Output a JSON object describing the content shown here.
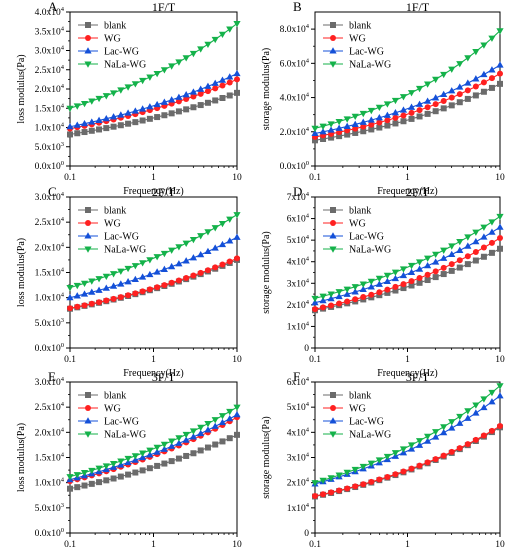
{
  "chart_data": [
    {
      "type": "line",
      "panel_label": "A",
      "title": "1F/T",
      "xlabel": "Frequency(Hz)",
      "ylabel": "loss modulus(Pa)",
      "xscale": "log",
      "xlim": [
        0.1,
        10
      ],
      "ylim": [
        0,
        40000
      ],
      "xticks": [
        0.1,
        1,
        10
      ],
      "xtick_labels": [
        "0.1",
        "1",
        "10"
      ],
      "yticks": [
        0,
        5000,
        10000,
        15000,
        20000,
        25000,
        30000,
        35000,
        40000
      ],
      "ytick_labels": [
        {
          "m": "0.0",
          "e": "0"
        },
        {
          "m": "5.0",
          "e": "3"
        },
        {
          "m": "1.0",
          "e": "4"
        },
        {
          "m": "1.5",
          "e": "4"
        },
        {
          "m": "2.0",
          "e": "4"
        },
        {
          "m": "2.5",
          "e": "4"
        },
        {
          "m": "3.0",
          "e": "4"
        },
        {
          "m": "3.5",
          "e": "4"
        },
        {
          "m": "4.0",
          "e": "4"
        }
      ],
      "legend_position": "top-left",
      "series": [
        {
          "name": "blank",
          "color": "#6b6b6b",
          "marker": "square",
          "y_start": 8200,
          "y_end": 19000
        },
        {
          "name": "WG",
          "color": "#ff2020",
          "marker": "circle",
          "y_start": 9700,
          "y_end": 22500
        },
        {
          "name": "Lac-WG",
          "color": "#1450d8",
          "marker": "triangle-up",
          "y_start": 10200,
          "y_end": 24000
        },
        {
          "name": "NaLa-WG",
          "color": "#14b24a",
          "marker": "triangle-down",
          "y_start": 15000,
          "y_end": 37000
        }
      ]
    },
    {
      "type": "line",
      "panel_label": "B",
      "title": "1F/T",
      "xlabel": "Frequency(Hz)",
      "ylabel": "storage modulus(Pa)",
      "xscale": "log",
      "xlim": [
        0.1,
        10
      ],
      "ylim": [
        0,
        90000
      ],
      "xticks": [
        0.1,
        1,
        10
      ],
      "xtick_labels": [
        "0.1",
        "1",
        "10"
      ],
      "yticks": [
        0,
        20000,
        40000,
        60000,
        80000
      ],
      "ytick_labels": [
        {
          "m": "0.0",
          "e": "0"
        },
        {
          "m": "2.0",
          "e": "4"
        },
        {
          "m": "4.0",
          "e": "4"
        },
        {
          "m": "6.0",
          "e": "4"
        },
        {
          "m": "8.0",
          "e": "4"
        }
      ],
      "legend_position": "top-left",
      "series": [
        {
          "name": "blank",
          "color": "#6b6b6b",
          "marker": "square",
          "y_start": 15000,
          "y_end": 48000
        },
        {
          "name": "WG",
          "color": "#ff2020",
          "marker": "circle",
          "y_start": 17000,
          "y_end": 54000
        },
        {
          "name": "Lac-WG",
          "color": "#1450d8",
          "marker": "triangle-up",
          "y_start": 19000,
          "y_end": 59000
        },
        {
          "name": "NaLa-WG",
          "color": "#14b24a",
          "marker": "triangle-down",
          "y_start": 22000,
          "y_end": 79000
        }
      ]
    },
    {
      "type": "line",
      "panel_label": "C",
      "title": "2F/T",
      "xlabel": "Frequency(Hz)",
      "ylabel": "loss modulus(Pa)",
      "xscale": "log",
      "xlim": [
        0.1,
        10
      ],
      "ylim": [
        0,
        30000
      ],
      "xticks": [
        0.1,
        1,
        10
      ],
      "xtick_labels": [
        "0.1",
        "1",
        "10"
      ],
      "yticks": [
        0,
        5000,
        10000,
        15000,
        20000,
        25000,
        30000
      ],
      "ytick_labels": [
        {
          "m": "0.0",
          "e": "0"
        },
        {
          "m": "5.0",
          "e": "3"
        },
        {
          "m": "1.0",
          "e": "4"
        },
        {
          "m": "1.5",
          "e": "4"
        },
        {
          "m": "2.0",
          "e": "4"
        },
        {
          "m": "2.5",
          "e": "4"
        },
        {
          "m": "3.0",
          "e": "4"
        }
      ],
      "legend_position": "top-left",
      "series": [
        {
          "name": "blank",
          "color": "#6b6b6b",
          "marker": "square",
          "y_start": 7800,
          "y_end": 17500
        },
        {
          "name": "WG",
          "color": "#ff2020",
          "marker": "circle",
          "y_start": 7900,
          "y_end": 17800
        },
        {
          "name": "Lac-WG",
          "color": "#1450d8",
          "marker": "triangle-up",
          "y_start": 10000,
          "y_end": 22000
        },
        {
          "name": "NaLa-WG",
          "color": "#14b24a",
          "marker": "triangle-down",
          "y_start": 12000,
          "y_end": 26500
        }
      ]
    },
    {
      "type": "line",
      "panel_label": "D",
      "title": "2F/T",
      "xlabel": "Frequency(Hz)",
      "ylabel": "storage modulus(Pa)",
      "xscale": "log",
      "xlim": [
        0.1,
        10
      ],
      "ylim": [
        0,
        70000
      ],
      "xticks": [
        0.1,
        1,
        10
      ],
      "xtick_labels": [
        "0.1",
        "1",
        "10"
      ],
      "yticks": [
        0,
        10000,
        20000,
        30000,
        40000,
        50000,
        60000,
        70000
      ],
      "ytick_labels": [
        {
          "m": "0",
          "e": ""
        },
        {
          "m": "1",
          "e": "4"
        },
        {
          "m": "2",
          "e": "4"
        },
        {
          "m": "3",
          "e": "4"
        },
        {
          "m": "4",
          "e": "4"
        },
        {
          "m": "5",
          "e": "4"
        },
        {
          "m": "6",
          "e": "4"
        },
        {
          "m": "7",
          "e": "4"
        }
      ],
      "legend_position": "top-left",
      "series": [
        {
          "name": "blank",
          "color": "#6b6b6b",
          "marker": "square",
          "y_start": 17500,
          "y_end": 46000
        },
        {
          "name": "WG",
          "color": "#ff2020",
          "marker": "circle",
          "y_start": 18000,
          "y_end": 51000
        },
        {
          "name": "Lac-WG",
          "color": "#1450d8",
          "marker": "triangle-up",
          "y_start": 21000,
          "y_end": 56000
        },
        {
          "name": "NaLa-WG",
          "color": "#14b24a",
          "marker": "triangle-down",
          "y_start": 23000,
          "y_end": 61000
        }
      ]
    },
    {
      "type": "line",
      "panel_label": "E",
      "title": "3F/T",
      "xlabel": "Frequency(Hz)",
      "ylabel": "loss modulus(Pa)",
      "xscale": "log",
      "xlim": [
        0.1,
        10
      ],
      "ylim": [
        0,
        30000
      ],
      "xticks": [
        0.1,
        1,
        10
      ],
      "xtick_labels": [
        "0.1",
        "1",
        "10"
      ],
      "yticks": [
        0,
        5000,
        10000,
        15000,
        20000,
        25000,
        30000
      ],
      "ytick_labels": [
        {
          "m": "0.0",
          "e": "0"
        },
        {
          "m": "5.0",
          "e": "3"
        },
        {
          "m": "1.0",
          "e": "4"
        },
        {
          "m": "1.5",
          "e": "4"
        },
        {
          "m": "2.0",
          "e": "4"
        },
        {
          "m": "2.5",
          "e": "4"
        },
        {
          "m": "3.0",
          "e": "4"
        }
      ],
      "legend_position": "top-left",
      "series": [
        {
          "name": "blank",
          "color": "#6b6b6b",
          "marker": "square",
          "y_start": 8800,
          "y_end": 19500
        },
        {
          "name": "WG",
          "color": "#ff2020",
          "marker": "circle",
          "y_start": 10300,
          "y_end": 23000
        },
        {
          "name": "Lac-WG",
          "color": "#1450d8",
          "marker": "triangle-up",
          "y_start": 10600,
          "y_end": 23500
        },
        {
          "name": "NaLa-WG",
          "color": "#14b24a",
          "marker": "triangle-down",
          "y_start": 11200,
          "y_end": 25000
        }
      ]
    },
    {
      "type": "line",
      "panel_label": "F",
      "title": "3F/T",
      "xlabel": "Frequency(Hz)",
      "ylabel": "storage modulus(Pa)",
      "xscale": "log",
      "xlim": [
        0.1,
        10
      ],
      "ylim": [
        0,
        60000
      ],
      "xticks": [
        0.1,
        1,
        10
      ],
      "xtick_labels": [
        "0.1",
        "1",
        "10"
      ],
      "yticks": [
        0,
        10000,
        20000,
        30000,
        40000,
        50000,
        60000
      ],
      "ytick_labels": [
        {
          "m": "0",
          "e": ""
        },
        {
          "m": "1",
          "e": "4"
        },
        {
          "m": "2",
          "e": "4"
        },
        {
          "m": "3",
          "e": "4"
        },
        {
          "m": "4",
          "e": "4"
        },
        {
          "m": "5",
          "e": "4"
        },
        {
          "m": "6",
          "e": "4"
        }
      ],
      "legend_position": "top-left",
      "series": [
        {
          "name": "blank",
          "color": "#6b6b6b",
          "marker": "square",
          "y_start": 14500,
          "y_end": 42000
        },
        {
          "name": "WG",
          "color": "#ff2020",
          "marker": "circle",
          "y_start": 14700,
          "y_end": 42500
        },
        {
          "name": "Lac-WG",
          "color": "#1450d8",
          "marker": "triangle-up",
          "y_start": 19500,
          "y_end": 54500
        },
        {
          "name": "NaLa-WG",
          "color": "#14b24a",
          "marker": "triangle-down",
          "y_start": 20000,
          "y_end": 58500
        }
      ]
    }
  ]
}
